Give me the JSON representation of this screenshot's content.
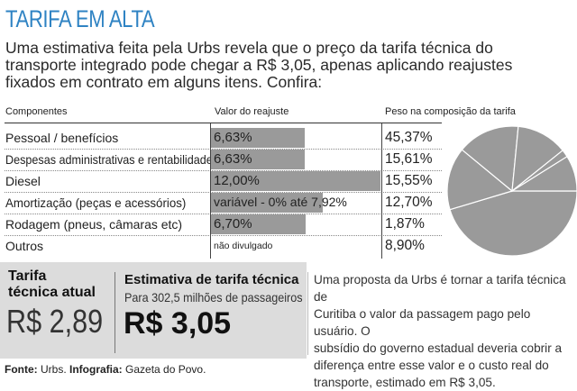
{
  "title": "TARIFA EM ALTA",
  "intro": "Uma estimativa feita pela Urbs revela que o preço da tarifa técnica do\ntransporte integrado pode chegar a R$ 3,05, apenas aplicando reajustes\nfixados em contrato em alguns itens. Confira:",
  "table": {
    "headers": {
      "components": "Componentes",
      "adjustment": "Valor do reajuste",
      "weight": "Peso na composição da tarifa"
    },
    "rows": [
      {
        "component": "Pessoal / benefícios",
        "adjustment": "6,63%",
        "adjustment_value": 6.63,
        "weight": "45,37%"
      },
      {
        "component": "Despesas administrativas e rentabilidade",
        "adjustment": "6,63%",
        "adjustment_value": 6.63,
        "weight": "15,61%"
      },
      {
        "component": "Diesel",
        "adjustment": "12,00%",
        "adjustment_value": 12.0,
        "weight": "15,55%"
      },
      {
        "component": "Amortização (peças e acessórios)",
        "adjustment": "variável - 0% até 7,92%",
        "adjustment_value": 7.92,
        "weight": "12,70%"
      },
      {
        "component": "Rodagem (pneus, câmaras etc)",
        "adjustment": "6,70%",
        "adjustment_value": 6.7,
        "weight": "1,87%"
      },
      {
        "component": "Outros",
        "adjustment": "não divulgado",
        "adjustment_value": null,
        "weight": "8,90%"
      }
    ]
  },
  "chart_data": {
    "type": "pie",
    "title": "Peso na composição da tarifa",
    "categories": [
      "Pessoal / benefícios",
      "Despesas administrativas e rentabilidade",
      "Diesel",
      "Amortização (peças e acessórios)",
      "Rodagem (pneus, câmaras etc)",
      "Outros"
    ],
    "values": [
      45.37,
      15.61,
      15.55,
      12.7,
      1.87,
      8.9
    ]
  },
  "current": {
    "label": "Tarifa\ntécnica atual",
    "value": "R$ 2,89"
  },
  "estimate": {
    "label": "Estimativa de tarifa técnica",
    "subtitle": "Para 302,5 milhões de passageiros",
    "value": "R$ 3,05"
  },
  "note": "Uma proposta da Urbs é tornar a tarifa técnica de\nCuritiba o valor da passagem pago pelo usuário. O\nsubsídio do governo estadual deveria cobrir a\ndiferença entre esse valor e o custo real do\ntransporte, estimado em R$ 3,05.",
  "source": {
    "source_label": "Fonte:",
    "source_value": "Urbs.",
    "infographic_label": "Infografia:",
    "infographic_value": "Gazeta do Povo."
  },
  "colors": {
    "title": "#2f83c3",
    "bar": "#9a9a9a",
    "pie": "#9a9a9a",
    "box": "#dcdcdc"
  }
}
